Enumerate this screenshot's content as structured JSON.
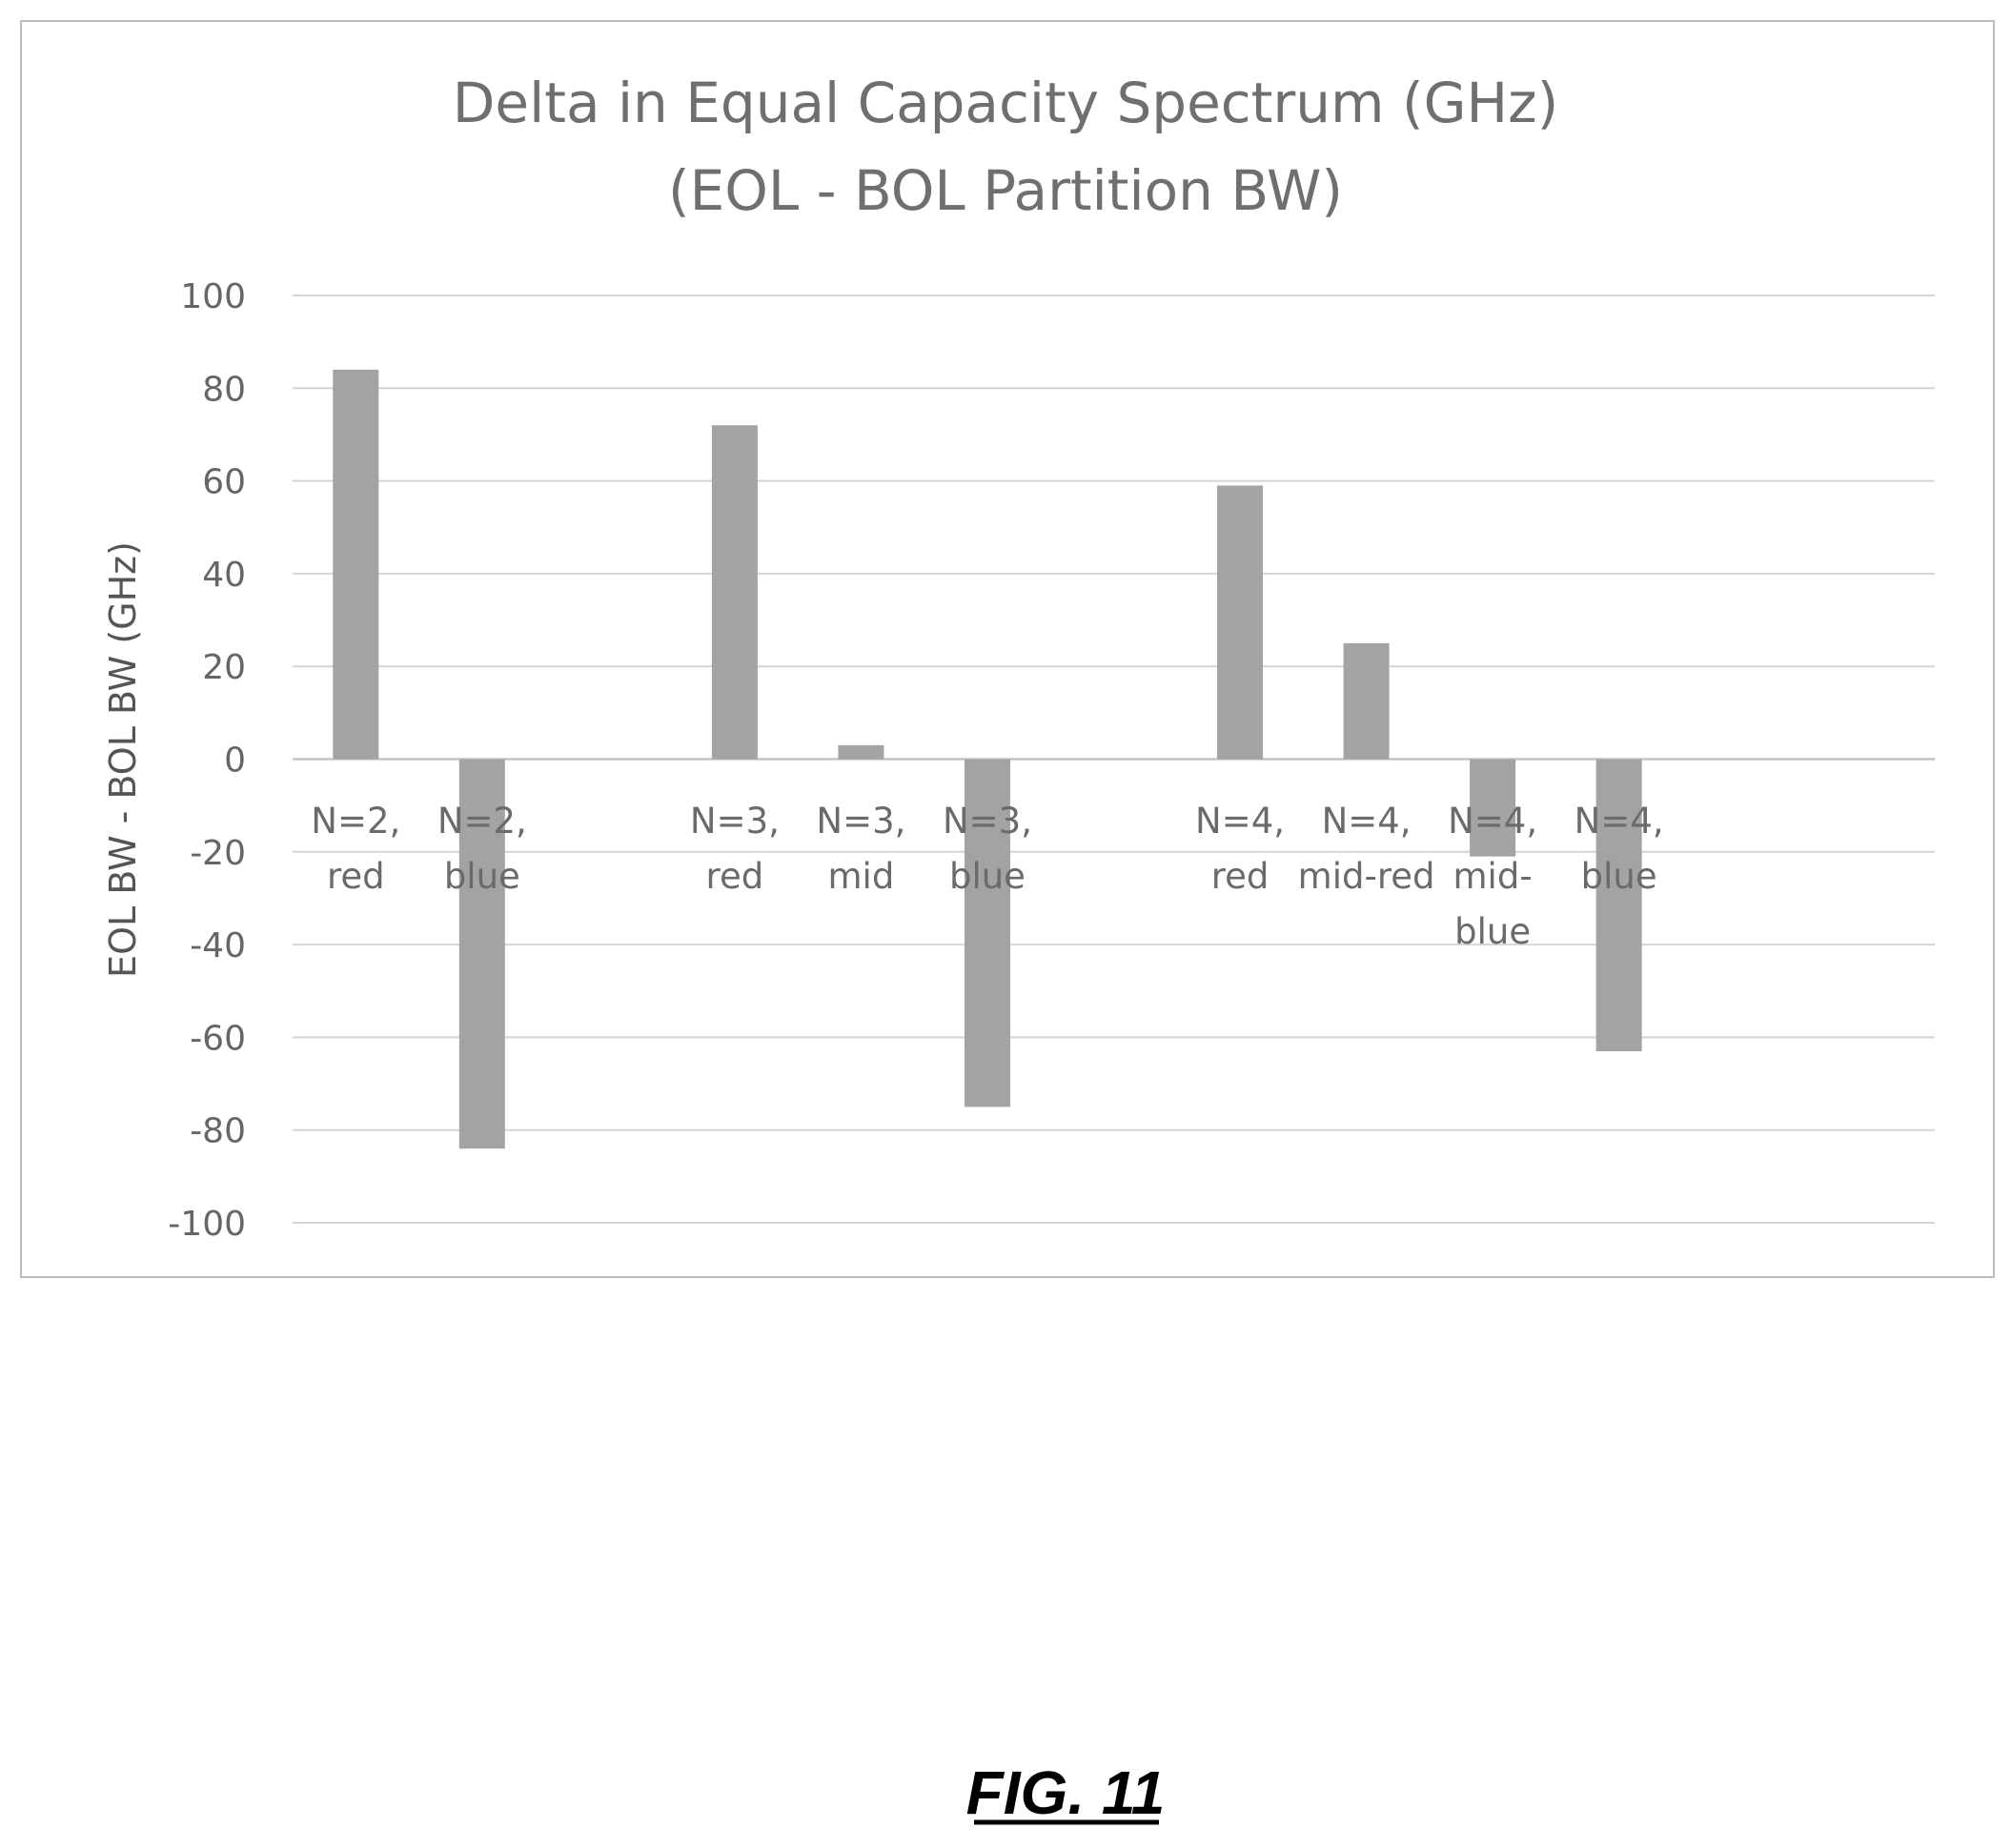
{
  "chart_data": {
    "type": "bar",
    "title_lines": [
      "Delta in Equal Capacity Spectrum (GHz)",
      "(EOL - BOL Partition BW)"
    ],
    "xlabel": "",
    "ylabel": "EOL BW - BOL BW (GHz)",
    "ylim": [
      -100,
      100
    ],
    "yticks": [
      100,
      80,
      60,
      40,
      20,
      0,
      -20,
      -40,
      -60,
      -80,
      -100
    ],
    "grid": true,
    "slots": 13,
    "categories": [
      {
        "lines": [
          "N=2,",
          "red"
        ],
        "slot": 0
      },
      {
        "lines": [
          "N=2,",
          "blue"
        ],
        "slot": 1
      },
      {
        "lines": [
          "N=3,",
          "red"
        ],
        "slot": 3
      },
      {
        "lines": [
          "N=3,",
          "mid"
        ],
        "slot": 4
      },
      {
        "lines": [
          "N=3,",
          "blue"
        ],
        "slot": 5
      },
      {
        "lines": [
          "N=4,",
          "red"
        ],
        "slot": 7
      },
      {
        "lines": [
          "N=4,",
          "mid-red"
        ],
        "slot": 8
      },
      {
        "lines": [
          "N=4,",
          "mid-",
          "blue"
        ],
        "slot": 9
      },
      {
        "lines": [
          "N=4,",
          "blue"
        ],
        "slot": 10
      }
    ],
    "values": [
      84,
      -84,
      72,
      3,
      -75,
      59,
      25,
      -21,
      -63
    ],
    "bar_color": "#a3a3a3"
  },
  "figure_caption": "FIG. 11"
}
